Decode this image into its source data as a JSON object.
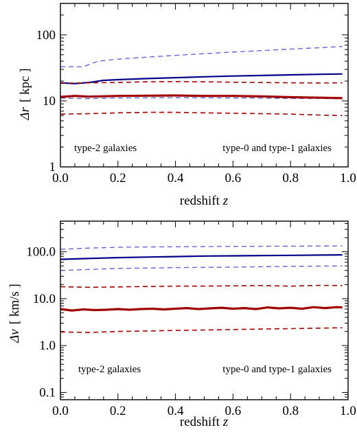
{
  "chart_data": [
    {
      "type": "line",
      "title": "",
      "xlabel": "redshift z",
      "xlabel_text": "redshift ",
      "xlabel_var": "z",
      "ylabel": "Δr [ kpc ]",
      "ylabel_sym": "Δr",
      "ylabel_unit": "[ kpc ]",
      "xlim": [
        0.0,
        1.0
      ],
      "ylim": [
        1,
        300
      ],
      "yscale": "log",
      "x_ticks": [
        "0.0",
        "0.2",
        "0.4",
        "0.6",
        "0.8",
        "1.0"
      ],
      "y_ticks": [
        "1",
        "10",
        "100"
      ],
      "y_tick_values": [
        1,
        10,
        100
      ],
      "grid": false,
      "annotations": [
        {
          "text": "type-2 galaxies",
          "color": "#a00000",
          "anchor": "left"
        },
        {
          "text": "type-0 and type-1 galaxies",
          "color": "#00008b",
          "anchor": "right"
        }
      ],
      "series": [
        {
          "color": "#00008b",
          "dash": false,
          "width": 2.2,
          "points": [
            [
              0.0,
              18.8
            ],
            [
              0.05,
              18.3
            ],
            [
              0.1,
              19.0
            ],
            [
              0.15,
              20.5
            ],
            [
              0.2,
              21.0
            ],
            [
              0.3,
              21.8
            ],
            [
              0.4,
              22.5
            ],
            [
              0.5,
              23.2
            ],
            [
              0.6,
              23.8
            ],
            [
              0.7,
              24.3
            ],
            [
              0.8,
              24.8
            ],
            [
              0.9,
              25.3
            ],
            [
              0.98,
              25.6
            ]
          ]
        },
        {
          "color": "#5a5ad2",
          "dash": true,
          "width": 1.3,
          "points": [
            [
              0.0,
              33
            ],
            [
              0.08,
              33
            ],
            [
              0.13,
              40
            ],
            [
              0.2,
              43
            ],
            [
              0.3,
              46
            ],
            [
              0.4,
              49
            ],
            [
              0.5,
              52
            ],
            [
              0.6,
              55
            ],
            [
              0.7,
              58
            ],
            [
              0.8,
              61
            ],
            [
              0.9,
              64
            ],
            [
              0.98,
              67
            ]
          ]
        },
        {
          "color": "#5a5ad2",
          "dash": true,
          "width": 1.3,
          "points": [
            [
              0.0,
              11.0
            ],
            [
              0.1,
              10.8
            ],
            [
              0.2,
              11.1
            ],
            [
              0.4,
              11.2
            ],
            [
              0.6,
              11.1
            ],
            [
              0.8,
              10.9
            ],
            [
              0.98,
              10.8
            ]
          ]
        },
        {
          "color": "#a00000",
          "dash": false,
          "width": 3.2,
          "points": [
            [
              0.0,
              11.5
            ],
            [
              0.05,
              11.9
            ],
            [
              0.1,
              11.6
            ],
            [
              0.2,
              11.9
            ],
            [
              0.3,
              12.0
            ],
            [
              0.4,
              12.1
            ],
            [
              0.5,
              11.9
            ],
            [
              0.6,
              11.9
            ],
            [
              0.7,
              11.7
            ],
            [
              0.8,
              11.4
            ],
            [
              0.9,
              11.2
            ],
            [
              0.98,
              11.0
            ]
          ]
        },
        {
          "color": "#a00000",
          "dash": true,
          "width": 1.6,
          "points": [
            [
              0.0,
              18.5
            ],
            [
              0.1,
              18.8
            ],
            [
              0.2,
              19.0
            ],
            [
              0.3,
              19.5
            ],
            [
              0.4,
              19.6
            ],
            [
              0.5,
              19.5
            ],
            [
              0.6,
              19.2
            ],
            [
              0.7,
              19.0
            ],
            [
              0.8,
              18.8
            ],
            [
              0.9,
              18.7
            ],
            [
              0.98,
              18.8
            ]
          ]
        },
        {
          "color": "#a00000",
          "dash": true,
          "width": 1.6,
          "points": [
            [
              0.0,
              6.3
            ],
            [
              0.1,
              6.4
            ],
            [
              0.2,
              6.6
            ],
            [
              0.3,
              6.7
            ],
            [
              0.4,
              6.7
            ],
            [
              0.5,
              6.6
            ],
            [
              0.6,
              6.5
            ],
            [
              0.7,
              6.4
            ],
            [
              0.8,
              6.3
            ],
            [
              0.9,
              6.1
            ],
            [
              0.98,
              6.0
            ]
          ]
        }
      ]
    },
    {
      "type": "line",
      "title": "",
      "xlabel": "redshift z",
      "xlabel_text": "redshift ",
      "xlabel_var": "z",
      "ylabel": "Δv [ km/s ]",
      "ylabel_sym": "Δv",
      "ylabel_unit": "[ km/s ]",
      "xlim": [
        0.0,
        1.0
      ],
      "ylim": [
        0.07,
        450
      ],
      "yscale": "log",
      "x_ticks": [
        "0.0",
        "0.2",
        "0.4",
        "0.6",
        "0.8",
        "1.0"
      ],
      "y_ticks": [
        "0.1",
        "1.0",
        "10.0",
        "100.0"
      ],
      "y_tick_values": [
        0.1,
        1.0,
        10.0,
        100.0
      ],
      "grid": false,
      "annotations": [
        {
          "text": "type-2 galaxies",
          "color": "#a00000",
          "anchor": "left"
        },
        {
          "text": "type-0 and type-1 galaxies",
          "color": "#00008b",
          "anchor": "right"
        }
      ],
      "series": [
        {
          "color": "#00008b",
          "dash": false,
          "width": 2.2,
          "points": [
            [
              0.0,
              69
            ],
            [
              0.1,
              72
            ],
            [
              0.2,
              75
            ],
            [
              0.3,
              77
            ],
            [
              0.4,
              79
            ],
            [
              0.5,
              81
            ],
            [
              0.6,
              82
            ],
            [
              0.7,
              83
            ],
            [
              0.8,
              84
            ],
            [
              0.9,
              85
            ],
            [
              0.98,
              86
            ]
          ]
        },
        {
          "color": "#5a5ad2",
          "dash": true,
          "width": 1.3,
          "points": [
            [
              0.0,
              113
            ],
            [
              0.1,
              120
            ],
            [
              0.2,
              125
            ],
            [
              0.4,
              128
            ],
            [
              0.6,
              130
            ],
            [
              0.8,
              132
            ],
            [
              0.98,
              133
            ]
          ]
        },
        {
          "color": "#5a5ad2",
          "dash": true,
          "width": 1.3,
          "points": [
            [
              0.0,
              40
            ],
            [
              0.1,
              42
            ],
            [
              0.2,
              44
            ],
            [
              0.4,
              46
            ],
            [
              0.6,
              47
            ],
            [
              0.8,
              49
            ],
            [
              0.98,
              50
            ]
          ]
        },
        {
          "color": "#a00000",
          "dash": false,
          "width": 3.2,
          "points": [
            [
              0.0,
              6.0
            ],
            [
              0.04,
              5.6
            ],
            [
              0.08,
              5.9
            ],
            [
              0.12,
              5.7
            ],
            [
              0.16,
              5.8
            ],
            [
              0.2,
              6.0
            ],
            [
              0.24,
              5.8
            ],
            [
              0.28,
              6.0
            ],
            [
              0.32,
              6.1
            ],
            [
              0.36,
              5.9
            ],
            [
              0.4,
              6.1
            ],
            [
              0.44,
              6.3
            ],
            [
              0.48,
              6.0
            ],
            [
              0.52,
              6.2
            ],
            [
              0.56,
              6.4
            ],
            [
              0.6,
              6.1
            ],
            [
              0.64,
              6.3
            ],
            [
              0.68,
              6.0
            ],
            [
              0.72,
              6.5
            ],
            [
              0.76,
              6.2
            ],
            [
              0.8,
              6.4
            ],
            [
              0.84,
              6.1
            ],
            [
              0.88,
              6.6
            ],
            [
              0.92,
              6.3
            ],
            [
              0.96,
              6.6
            ],
            [
              0.98,
              6.5
            ]
          ]
        },
        {
          "color": "#a00000",
          "dash": true,
          "width": 1.6,
          "points": [
            [
              0.0,
              18.0
            ],
            [
              0.1,
              17.5
            ],
            [
              0.2,
              17.8
            ],
            [
              0.3,
              18.2
            ],
            [
              0.4,
              18.5
            ],
            [
              0.5,
              18.6
            ],
            [
              0.6,
              18.8
            ],
            [
              0.7,
              19.0
            ],
            [
              0.8,
              18.5
            ],
            [
              0.9,
              19.2
            ],
            [
              0.98,
              19.0
            ]
          ]
        },
        {
          "color": "#a00000",
          "dash": true,
          "width": 1.6,
          "points": [
            [
              0.0,
              1.95
            ],
            [
              0.1,
              1.9
            ],
            [
              0.2,
              2.0
            ],
            [
              0.3,
              2.05
            ],
            [
              0.4,
              2.1
            ],
            [
              0.5,
              2.15
            ],
            [
              0.6,
              2.2
            ],
            [
              0.7,
              2.25
            ],
            [
              0.8,
              2.3
            ],
            [
              0.9,
              2.35
            ],
            [
              0.98,
              2.4
            ]
          ]
        }
      ]
    }
  ]
}
